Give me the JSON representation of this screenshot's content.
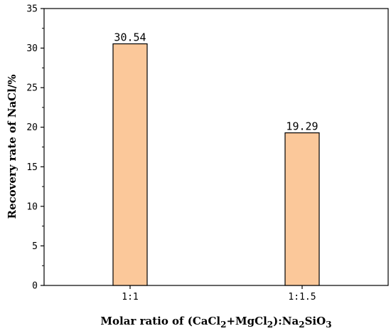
{
  "chart_data": {
    "type": "bar",
    "categories": [
      "1:1",
      "1:1.5"
    ],
    "values": [
      30.54,
      19.29
    ],
    "data_labels": [
      "30.54",
      "19.29"
    ],
    "title": "",
    "xlabel": {
      "prefix": "Molar ratio of (CaCl",
      "sub1": "2",
      "mid1": "+MgCl",
      "sub2": "2",
      "mid2": "):Na",
      "sub3": "2",
      "mid3": "SiO",
      "sub4": "3"
    },
    "ylabel": "Recovery rate of NaCl/%",
    "ylim": [
      0,
      35
    ],
    "yticks": [
      "0",
      "5",
      "10",
      "15",
      "20",
      "25",
      "30",
      "35"
    ],
    "bar_color": "#FBC89A",
    "bar_edge_color": "#000000",
    "grid": false,
    "legend": "none"
  }
}
